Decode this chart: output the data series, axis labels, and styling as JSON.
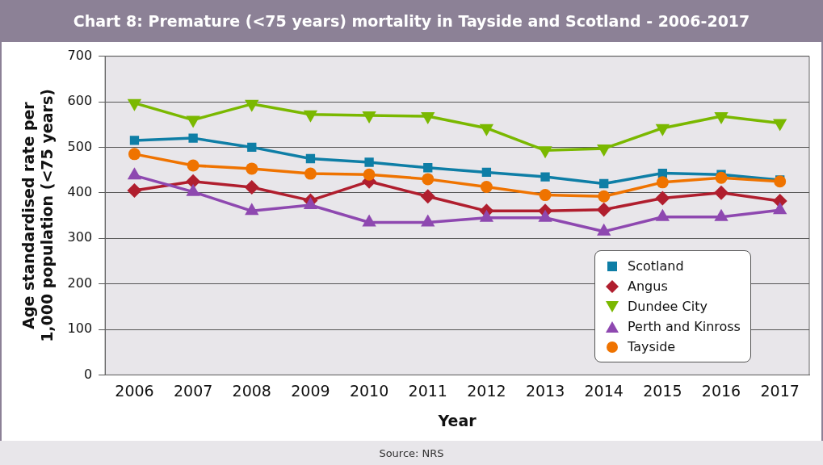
{
  "chart_data": {
    "type": "line",
    "title": "Chart 8: Premature (<75 years) mortality in Tayside and Scotland - 2006-2017",
    "xlabel": "Year",
    "ylabel": "Age standardised rate per 1,000 population (<75 years)",
    "categories": [
      "2006",
      "2007",
      "2008",
      "2009",
      "2010",
      "2011",
      "2012",
      "2013",
      "2014",
      "2015",
      "2016",
      "2017"
    ],
    "series": [
      {
        "name": "Scotland",
        "color": "#0e7ea6",
        "marker": "square",
        "values": [
          515,
          520,
          500,
          475,
          467,
          455,
          445,
          435,
          420,
          443,
          440,
          428
        ]
      },
      {
        "name": "Angus",
        "color": "#b01e2e",
        "marker": "diamond",
        "values": [
          405,
          425,
          412,
          383,
          425,
          392,
          360,
          360,
          363,
          388,
          400,
          382
        ]
      },
      {
        "name": "Dundee City",
        "color": "#7ab800",
        "marker": "triangle-down",
        "values": [
          597,
          560,
          595,
          572,
          570,
          568,
          542,
          493,
          497,
          542,
          568,
          553
        ]
      },
      {
        "name": "Perth and Kinross",
        "color": "#8e48b0",
        "marker": "triangle",
        "values": [
          438,
          402,
          360,
          373,
          335,
          335,
          345,
          345,
          315,
          347,
          347,
          362
        ]
      },
      {
        "name": "Tayside",
        "color": "#ef7300",
        "marker": "circle",
        "values": [
          485,
          460,
          453,
          442,
          440,
          430,
          413,
          395,
          392,
          423,
          433,
          425
        ]
      }
    ],
    "ylim": [
      0,
      700
    ],
    "yticks": [
      0,
      100,
      200,
      300,
      400,
      500,
      600,
      700
    ],
    "grid": "y",
    "legend": "bottom right",
    "annotations": [
      "Source: NRS"
    ]
  }
}
